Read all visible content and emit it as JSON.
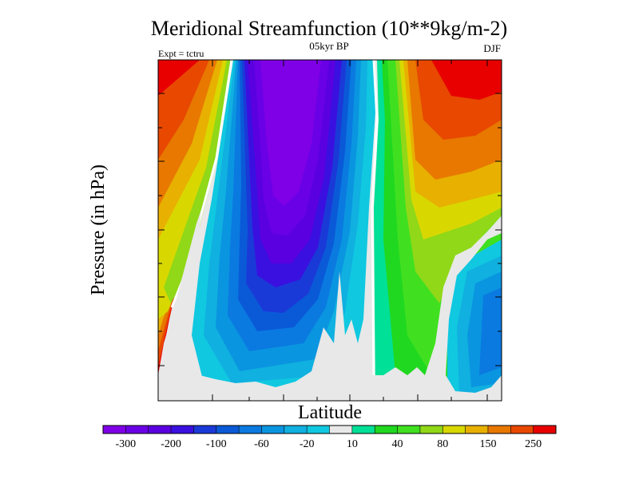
{
  "chart_data": {
    "type": "heatmap",
    "subtype": "filled-contour",
    "title": "Meridional Streamfunction (10**9kg/m-2)",
    "subtitle_left": "Expt = tctru",
    "subtitle_center": "05kyr BP",
    "subtitle_right": "DJF",
    "xlabel": "Latitude",
    "ylabel": "Pressure (in hPa)",
    "grid": false,
    "x_tick_labels": [],
    "y_tick_labels": [],
    "colorbar": {
      "orientation": "horizontal",
      "location": "bottom",
      "levels": [
        -300,
        -250,
        -200,
        -150,
        -100,
        -80,
        -60,
        -40,
        -20,
        -10,
        10,
        20,
        40,
        60,
        80,
        100,
        150,
        200,
        250
      ],
      "tick_labels": [
        "-300",
        "-200",
        "-100",
        "-60",
        "-20",
        "10",
        "40",
        "80",
        "150",
        "250"
      ],
      "colors": [
        "#7f00e6",
        "#6a00e6",
        "#5a00e0",
        "#3a10e0",
        "#1a3ad8",
        "#0a5ad8",
        "#0a7ae0",
        "#0a95e0",
        "#10b0e0",
        "#10c8e0",
        "#e8e8e8",
        "#00e096",
        "#20d820",
        "#40e020",
        "#90d818",
        "#d8d800",
        "#e8b000",
        "#e87800",
        "#e84800",
        "#e80000"
      ]
    },
    "missing_color": "#e8e8e8",
    "regions_description": [
      {
        "region": "southern high latitudes, upper levels",
        "value_range": [
          150,
          300
        ]
      },
      {
        "region": "tropical southern cell (Hadley cell)",
        "value_range": [
          -300,
          -20
        ]
      },
      {
        "region": "northern tropical cell",
        "value_range": [
          10,
          150
        ]
      },
      {
        "region": "northern high latitudes, upper levels",
        "value_range": [
          150,
          300
        ]
      },
      {
        "region": "near-surface (orography masked)",
        "value_range": [
          null,
          null
        ]
      }
    ]
  }
}
